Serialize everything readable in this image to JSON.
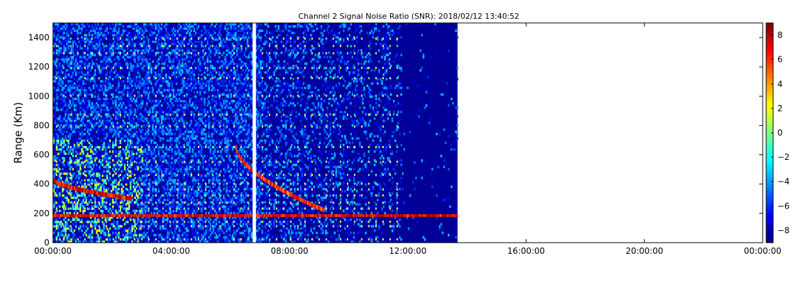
{
  "chart_data": {
    "type": "heatmap",
    "title": "Channel 2 Signal Noise Ratio (SNR): 2018/02/12 13:40:52",
    "xlabel": "",
    "ylabel": "Range (Km)",
    "x_range_hours": [
      0,
      24
    ],
    "x_ticks": [
      "00:00:00",
      "04:00:00",
      "08:00:00",
      "12:00:00",
      "16:00:00",
      "20:00:00",
      "00:00:00"
    ],
    "ylim": [
      0,
      1500
    ],
    "y_ticks": [
      0,
      200,
      400,
      600,
      800,
      1000,
      1200,
      1400
    ],
    "colorbar": {
      "ticks": [
        -8,
        -6,
        -4,
        -2,
        0,
        2,
        4,
        6,
        8
      ],
      "tick_labels": [
        "−8",
        "−6",
        "−4",
        "−2",
        "0",
        "2",
        "4",
        "6",
        "8"
      ],
      "vmin": -9,
      "vmax": 9,
      "colormap": "jet"
    },
    "data_end_time": "13:40:52",
    "gap_time_hours": 6.75,
    "features": [
      {
        "name": "persistent low-range echo",
        "time_start": "00:00:00",
        "time_end": "13:40:52",
        "range_km": 180,
        "snr": 9
      },
      {
        "name": "descending trace early",
        "time_start": "00:00:00",
        "time_end": "02:40:00",
        "range_start_km": 430,
        "range_end_km": 300,
        "snr": 9
      },
      {
        "name": "descending trace morning",
        "time_start": "06:10:00",
        "time_end": "09:10:00",
        "range_start_km": 650,
        "range_end_km": 220,
        "snr": 8
      }
    ],
    "grid": false,
    "legend": "colorbar-right"
  }
}
